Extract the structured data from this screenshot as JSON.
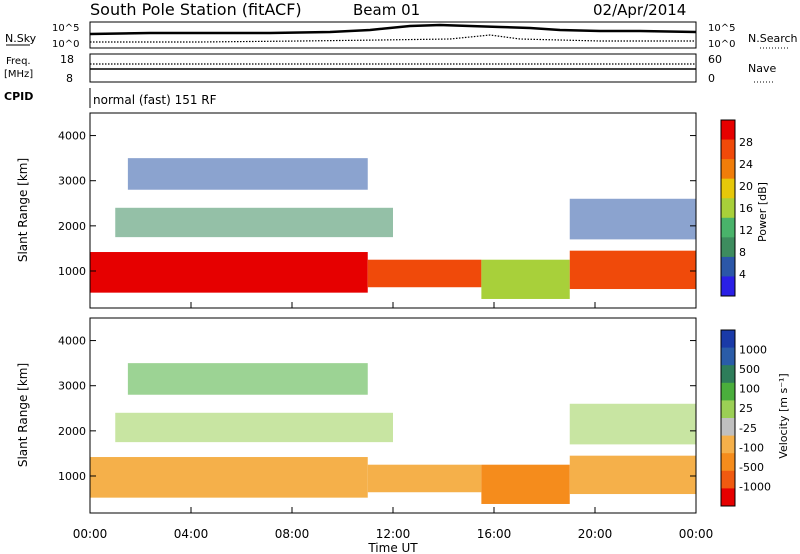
{
  "header": {
    "title": "South Pole Station (fitACF)",
    "beam": "Beam 01",
    "date": "02/Apr/2014"
  },
  "panels": {
    "nsky": {
      "label": "N.Sky",
      "left_ticks": [
        "10^5",
        "10^0"
      ],
      "right_ticks": [
        "10^5",
        "10^0"
      ],
      "right_label": "N.Search"
    },
    "freq": {
      "label_line1": "Freq.",
      "label_line2": "[MHz]",
      "left_ticks": [
        "18",
        "8"
      ],
      "right_ticks": [
        "60",
        "0"
      ],
      "right_label": "Nave"
    },
    "cpid": {
      "label": "CPID",
      "text": "normal (fast) 151 RF"
    }
  },
  "x_axis": {
    "label": "Time UT",
    "ticks": [
      "00:00",
      "04:00",
      "08:00",
      "12:00",
      "16:00",
      "20:00",
      "00:00"
    ]
  },
  "colors": {
    "power": [
      "#2a1fe6",
      "#2b57a8",
      "#3d8c5e",
      "#49b36a",
      "#a8d03a",
      "#e6c80a",
      "#f07d0a",
      "#f04a0a",
      "#e60000"
    ],
    "velocity": [
      "#e60000",
      "#f05a10",
      "#f58c1c",
      "#f5b04a",
      "#c0c0c0",
      "#9bcf55",
      "#4aae3c",
      "#2e7d5a",
      "#2a5ca8",
      "#1a3aa8"
    ]
  },
  "chart_data": [
    {
      "type": "heatmap",
      "name": "power",
      "ylabel": "Slant Range [km]",
      "yticks": [
        "4000",
        "3000",
        "2000",
        "1000"
      ],
      "ylim": [
        180,
        4500
      ],
      "x_range_hours": [
        0,
        24
      ],
      "colorbar": {
        "label": "Power [dB]",
        "ticks": [
          "28",
          "24",
          "20",
          "16",
          "12",
          "8",
          "4"
        ]
      },
      "bands": [
        {
          "start_h": 0.0,
          "end_h": 11.0,
          "lower_km": 520,
          "upper_km": 1420,
          "value_db": 28
        },
        {
          "start_h": 11.0,
          "end_h": 15.5,
          "lower_km": 640,
          "upper_km": 1250,
          "value_db": 24
        },
        {
          "start_h": 15.5,
          "end_h": 19.0,
          "lower_km": 380,
          "upper_km": 1250,
          "value_db": 16
        },
        {
          "start_h": 19.0,
          "end_h": 24.0,
          "lower_km": 600,
          "upper_km": 1450,
          "value_db": 24
        }
      ],
      "patches": [
        {
          "start_h": 1.0,
          "end_h": 12.0,
          "lower_km": 1750,
          "upper_km": 2400,
          "value_db": 8
        },
        {
          "start_h": 1.5,
          "end_h": 11.0,
          "lower_km": 2800,
          "upper_km": 3500,
          "value_db": 6
        },
        {
          "start_h": 19.0,
          "end_h": 24.0,
          "lower_km": 1700,
          "upper_km": 2600,
          "value_db": 6
        }
      ]
    },
    {
      "type": "heatmap",
      "name": "velocity",
      "ylabel": "Slant Range [km]",
      "yticks": [
        "4000",
        "3000",
        "2000",
        "1000"
      ],
      "ylim": [
        180,
        4500
      ],
      "x_range_hours": [
        0,
        24
      ],
      "colorbar": {
        "label": "Velocity [m s⁻¹]",
        "ticks": [
          "1000",
          "500",
          "100",
          "25",
          "-25",
          "-100",
          "-500",
          "-1000"
        ]
      },
      "bands": [
        {
          "start_h": 0.0,
          "end_h": 11.0,
          "lower_km": 520,
          "upper_km": 1420,
          "value_ms": -150
        },
        {
          "start_h": 11.0,
          "end_h": 15.5,
          "lower_km": 640,
          "upper_km": 1250,
          "value_ms": -100
        },
        {
          "start_h": 15.5,
          "end_h": 19.0,
          "lower_km": 380,
          "upper_km": 1250,
          "value_ms": -300
        },
        {
          "start_h": 19.0,
          "end_h": 24.0,
          "lower_km": 600,
          "upper_km": 1450,
          "value_ms": -120
        }
      ],
      "patches": [
        {
          "start_h": 1.0,
          "end_h": 12.0,
          "lower_km": 1750,
          "upper_km": 2400,
          "value_ms": 0
        },
        {
          "start_h": 1.5,
          "end_h": 11.0,
          "lower_km": 2800,
          "upper_km": 3500,
          "value_ms": 50
        },
        {
          "start_h": 19.0,
          "end_h": 24.0,
          "lower_km": 1700,
          "upper_km": 2600,
          "value_ms": 0
        }
      ]
    }
  ]
}
